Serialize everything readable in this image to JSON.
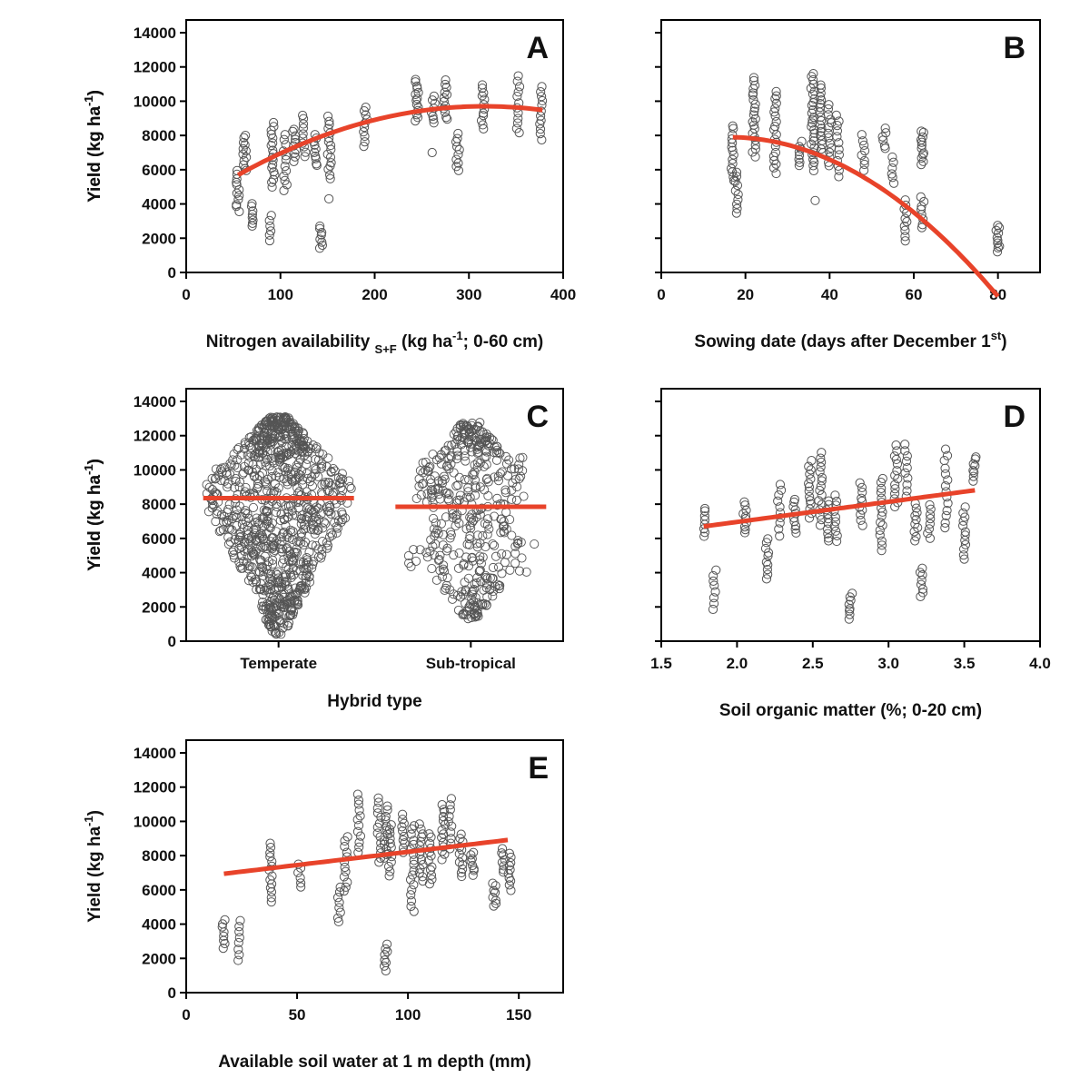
{
  "figure": {
    "colors": {
      "points": "#555555",
      "fit": "#e8432a",
      "axis": "#000000"
    },
    "y_tick_labels": [
      "0",
      "2000",
      "4000",
      "6000",
      "8000",
      "10000",
      "12000",
      "14000"
    ],
    "y_axis_label": {
      "main": "Yield (kg ha",
      "sup": "-1",
      "end": ")"
    }
  },
  "chart_data": [
    {
      "panel": "A",
      "type": "scatter",
      "xlabel_parts": {
        "pre": "Nitrogen availability ",
        "sub": "S+F",
        "mid": " (kg ha",
        "sup": "-1",
        "post": "; 0-60 cm)"
      },
      "ylabel": "Yield (kg ha-1)",
      "xlim": [
        0,
        400
      ],
      "ylim": [
        0,
        14000
      ],
      "x_tick_labels": [
        "0",
        "100",
        "200",
        "300",
        "400"
      ],
      "fit": {
        "kind": "quadratic",
        "from": 55,
        "to": 378,
        "coef": [
          3820,
          37.2,
          -0.0588
        ]
      },
      "clusters": [
        {
          "x": 55,
          "lo": 3600,
          "hi": 5900,
          "n": 12
        },
        {
          "x": 62,
          "lo": 5900,
          "hi": 8000,
          "n": 12
        },
        {
          "x": 70,
          "lo": 2700,
          "hi": 4000,
          "n": 8
        },
        {
          "x": 90,
          "lo": 1900,
          "hi": 3300,
          "n": 6
        },
        {
          "x": 92,
          "lo": 5000,
          "hi": 8700,
          "n": 18
        },
        {
          "x": 105,
          "lo": 4800,
          "hi": 8000,
          "n": 12
        },
        {
          "x": 115,
          "lo": 6500,
          "hi": 8400,
          "n": 10
        },
        {
          "x": 125,
          "lo": 6800,
          "hi": 9200,
          "n": 10
        },
        {
          "x": 137,
          "lo": 6200,
          "hi": 8000,
          "n": 10
        },
        {
          "x": 143,
          "lo": 1400,
          "hi": 2700,
          "n": 8
        },
        {
          "x": 152,
          "lo": 5500,
          "hi": 9100,
          "n": 16
        },
        {
          "x": 150,
          "lo": 4300,
          "hi": 4300,
          "n": 1
        },
        {
          "x": 190,
          "lo": 7400,
          "hi": 9700,
          "n": 10
        },
        {
          "x": 245,
          "lo": 8900,
          "hi": 11300,
          "n": 14
        },
        {
          "x": 260,
          "lo": 7000,
          "hi": 7000,
          "n": 1
        },
        {
          "x": 262,
          "lo": 8700,
          "hi": 10300,
          "n": 8
        },
        {
          "x": 275,
          "lo": 8900,
          "hi": 11200,
          "n": 12
        },
        {
          "x": 288,
          "lo": 5900,
          "hi": 8100,
          "n": 10
        },
        {
          "x": 315,
          "lo": 8400,
          "hi": 11000,
          "n": 12
        },
        {
          "x": 352,
          "lo": 8100,
          "hi": 11500,
          "n": 12
        },
        {
          "x": 377,
          "lo": 7800,
          "hi": 10800,
          "n": 12
        }
      ]
    },
    {
      "panel": "B",
      "type": "scatter",
      "xlabel_parts": {
        "pre": "Sowing date (days after December 1",
        "sup": "st",
        "post": ")"
      },
      "ylabel": "Yield (kg ha-1)",
      "xlim": [
        0,
        90
      ],
      "ylim": [
        0,
        14000
      ],
      "x_tick_labels": [
        "0",
        "20",
        "40",
        "60",
        "80"
      ],
      "fit": {
        "kind": "quadratic",
        "from": 17,
        "to": 80,
        "coef": [
          7320,
          72.6,
          -2.27
        ]
      },
      "clusters": [
        {
          "x": 17,
          "lo": 5300,
          "hi": 8600,
          "n": 14
        },
        {
          "x": 18,
          "lo": 3500,
          "hi": 5900,
          "n": 10
        },
        {
          "x": 22,
          "lo": 6800,
          "hi": 11400,
          "n": 22
        },
        {
          "x": 27,
          "lo": 5800,
          "hi": 10600,
          "n": 20
        },
        {
          "x": 33,
          "lo": 6200,
          "hi": 7600,
          "n": 8
        },
        {
          "x": 36,
          "lo": 6000,
          "hi": 11600,
          "n": 28
        },
        {
          "x": 37,
          "lo": 4200,
          "hi": 4200,
          "n": 1
        },
        {
          "x": 38,
          "lo": 7000,
          "hi": 11000,
          "n": 18
        },
        {
          "x": 40,
          "lo": 6200,
          "hi": 9800,
          "n": 14
        },
        {
          "x": 42,
          "lo": 5600,
          "hi": 9200,
          "n": 12
        },
        {
          "x": 48,
          "lo": 6000,
          "hi": 8000,
          "n": 8
        },
        {
          "x": 53,
          "lo": 7200,
          "hi": 8400,
          "n": 6
        },
        {
          "x": 55,
          "lo": 5200,
          "hi": 6700,
          "n": 6
        },
        {
          "x": 58,
          "lo": 1900,
          "hi": 4200,
          "n": 10
        },
        {
          "x": 62,
          "lo": 2600,
          "hi": 4400,
          "n": 8
        },
        {
          "x": 62,
          "lo": 6300,
          "hi": 8300,
          "n": 12
        },
        {
          "x": 80,
          "lo": 1200,
          "hi": 2800,
          "n": 10
        }
      ]
    },
    {
      "panel": "C",
      "type": "beeswarm",
      "xlabel": "Hybrid type",
      "ylabel": "Yield (kg ha-1)",
      "ylim": [
        0,
        14000
      ],
      "categories": [
        "Temperate",
        "Sub-tropical"
      ],
      "means": [
        8350,
        7850
      ],
      "ranges": [
        [
          400,
          13100
        ],
        [
          1300,
          12800
        ]
      ]
    },
    {
      "panel": "D",
      "type": "scatter",
      "xlabel": "Soil organic matter (%; 0-20 cm)",
      "ylabel": "Yield (kg ha-1)",
      "xlim": [
        1.5,
        4.0
      ],
      "ylim": [
        0,
        14000
      ],
      "x_tick_labels": [
        "1.5",
        "2.0",
        "2.5",
        "3.0",
        "3.5",
        "4.0"
      ],
      "fit": {
        "kind": "linear",
        "from": 1.78,
        "to": 3.57,
        "coef": [
          4605,
          1178
        ]
      },
      "clusters": [
        {
          "x": 1.78,
          "lo": 6100,
          "hi": 7800,
          "n": 8
        },
        {
          "x": 1.85,
          "lo": 1900,
          "hi": 4200,
          "n": 8
        },
        {
          "x": 2.05,
          "lo": 6300,
          "hi": 8100,
          "n": 10
        },
        {
          "x": 2.2,
          "lo": 3600,
          "hi": 6000,
          "n": 10
        },
        {
          "x": 2.28,
          "lo": 6200,
          "hi": 9200,
          "n": 10
        },
        {
          "x": 2.38,
          "lo": 6300,
          "hi": 8300,
          "n": 10
        },
        {
          "x": 2.48,
          "lo": 7200,
          "hi": 10500,
          "n": 14
        },
        {
          "x": 2.55,
          "lo": 6800,
          "hi": 11000,
          "n": 16
        },
        {
          "x": 2.6,
          "lo": 5800,
          "hi": 8200,
          "n": 10
        },
        {
          "x": 2.65,
          "lo": 5800,
          "hi": 8500,
          "n": 10
        },
        {
          "x": 2.75,
          "lo": 1300,
          "hi": 2800,
          "n": 8
        },
        {
          "x": 2.82,
          "lo": 6800,
          "hi": 9200,
          "n": 10
        },
        {
          "x": 2.95,
          "lo": 5300,
          "hi": 9500,
          "n": 16
        },
        {
          "x": 3.05,
          "lo": 7800,
          "hi": 11400,
          "n": 14
        },
        {
          "x": 3.12,
          "lo": 8500,
          "hi": 11500,
          "n": 10
        },
        {
          "x": 3.18,
          "lo": 5900,
          "hi": 8000,
          "n": 10
        },
        {
          "x": 3.22,
          "lo": 2600,
          "hi": 4300,
          "n": 8
        },
        {
          "x": 3.27,
          "lo": 6000,
          "hi": 8000,
          "n": 8
        },
        {
          "x": 3.38,
          "lo": 6600,
          "hi": 11200,
          "n": 14
        },
        {
          "x": 3.5,
          "lo": 4800,
          "hi": 7800,
          "n": 12
        },
        {
          "x": 3.57,
          "lo": 9400,
          "hi": 10800,
          "n": 8
        }
      ]
    },
    {
      "panel": "E",
      "type": "scatter",
      "xlabel": "Available soil water at 1 m depth (mm)",
      "ylabel": "Yield (kg ha-1)",
      "xlim": [
        0,
        170
      ],
      "ylim": [
        0,
        14000
      ],
      "x_tick_labels": [
        "0",
        "50",
        "100",
        "150"
      ],
      "fit": {
        "kind": "linear",
        "from": 17,
        "to": 145,
        "coef": [
          6680,
          15.4
        ]
      },
      "clusters": [
        {
          "x": 17,
          "lo": 2600,
          "hi": 4300,
          "n": 8
        },
        {
          "x": 24,
          "lo": 1900,
          "hi": 4200,
          "n": 8
        },
        {
          "x": 38,
          "lo": 5300,
          "hi": 8700,
          "n": 14
        },
        {
          "x": 51,
          "lo": 6200,
          "hi": 7500,
          "n": 6
        },
        {
          "x": 69,
          "lo": 4100,
          "hi": 6100,
          "n": 8
        },
        {
          "x": 72,
          "lo": 5900,
          "hi": 9100,
          "n": 12
        },
        {
          "x": 78,
          "lo": 8200,
          "hi": 11600,
          "n": 12
        },
        {
          "x": 87,
          "lo": 7600,
          "hi": 11400,
          "n": 14
        },
        {
          "x": 90,
          "lo": 1300,
          "hi": 2800,
          "n": 8
        },
        {
          "x": 90,
          "lo": 7800,
          "hi": 10900,
          "n": 12
        },
        {
          "x": 92,
          "lo": 6800,
          "hi": 9800,
          "n": 12
        },
        {
          "x": 98,
          "lo": 8200,
          "hi": 10400,
          "n": 10
        },
        {
          "x": 102,
          "lo": 4800,
          "hi": 9800,
          "n": 18
        },
        {
          "x": 106,
          "lo": 6500,
          "hi": 9800,
          "n": 14
        },
        {
          "x": 110,
          "lo": 6300,
          "hi": 9300,
          "n": 12
        },
        {
          "x": 116,
          "lo": 7800,
          "hi": 11000,
          "n": 14
        },
        {
          "x": 119,
          "lo": 8400,
          "hi": 11300,
          "n": 10
        },
        {
          "x": 124,
          "lo": 6800,
          "hi": 9200,
          "n": 12
        },
        {
          "x": 129,
          "lo": 6900,
          "hi": 8200,
          "n": 8
        },
        {
          "x": 139,
          "lo": 5000,
          "hi": 6400,
          "n": 8
        },
        {
          "x": 143,
          "lo": 7000,
          "hi": 8400,
          "n": 8
        },
        {
          "x": 146,
          "lo": 6000,
          "hi": 8100,
          "n": 10
        }
      ]
    }
  ]
}
